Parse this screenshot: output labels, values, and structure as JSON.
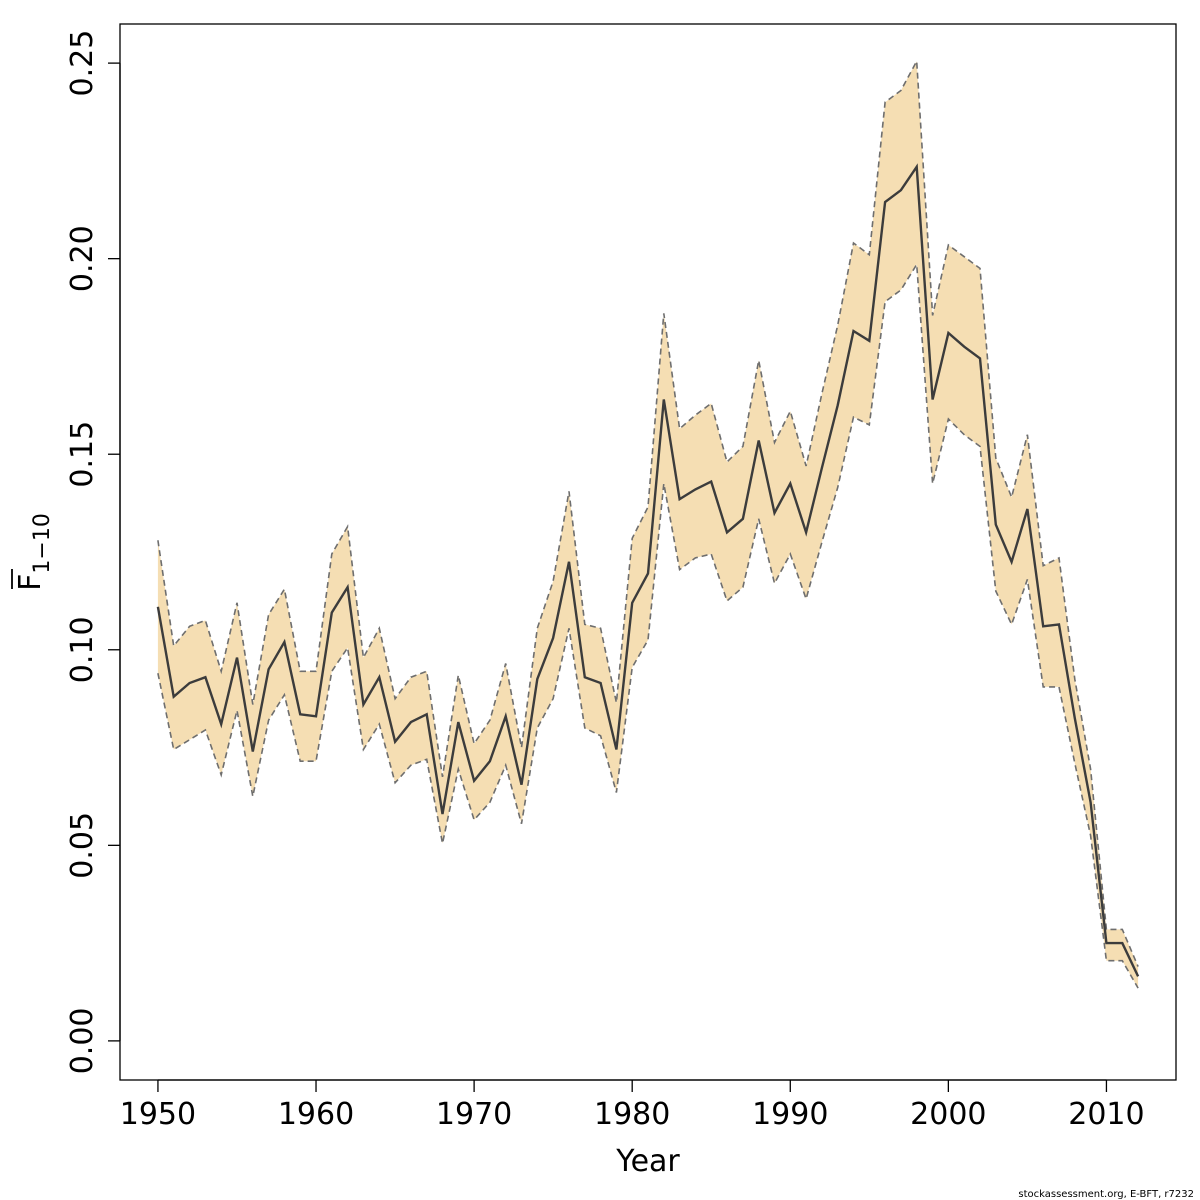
{
  "chart_data": {
    "type": "line",
    "title": "",
    "xlabel": "Year",
    "ylabel": {
      "base": "F",
      "subscript": "1−10"
    },
    "xlim": [
      1947.6,
      2014.4
    ],
    "ylim": [
      -0.01,
      0.26
    ],
    "xticks": [
      1950,
      1960,
      1970,
      1980,
      1990,
      2000,
      2010
    ],
    "yticks": [
      0.0,
      0.05,
      0.1,
      0.15,
      0.2,
      0.25
    ],
    "ytick_labels": [
      "0.00",
      "0.05",
      "0.10",
      "0.15",
      "0.20",
      "0.25"
    ],
    "grid": false,
    "colors": {
      "band_fill": "#F5DEB3",
      "bound_line": "#6e6e6e",
      "estimate_line": "#3c3c3c",
      "axis": "#000000"
    },
    "x": [
      1950,
      1951,
      1952,
      1953,
      1954,
      1955,
      1956,
      1957,
      1958,
      1959,
      1960,
      1961,
      1962,
      1963,
      1964,
      1965,
      1966,
      1967,
      1968,
      1969,
      1970,
      1971,
      1972,
      1973,
      1974,
      1975,
      1976,
      1977,
      1978,
      1979,
      1980,
      1981,
      1982,
      1983,
      1984,
      1985,
      1986,
      1987,
      1988,
      1989,
      1990,
      1991,
      1992,
      1993,
      1994,
      1995,
      1996,
      1997,
      1998,
      1999,
      2000,
      2001,
      2002,
      2003,
      2004,
      2005,
      2006,
      2007,
      2008,
      2009,
      2010,
      2011,
      2012
    ],
    "series": [
      {
        "role": "estimate",
        "values": [
          0.111,
          0.088,
          0.0915,
          0.093,
          0.081,
          0.098,
          0.074,
          0.095,
          0.102,
          0.0835,
          0.083,
          0.1095,
          0.116,
          0.086,
          0.093,
          0.0765,
          0.0815,
          0.0835,
          0.058,
          0.0815,
          0.0665,
          0.0715,
          0.083,
          0.0655,
          0.0925,
          0.103,
          0.1225,
          0.093,
          0.0915,
          0.0745,
          0.112,
          0.1195,
          0.164,
          0.1385,
          0.141,
          0.143,
          0.13,
          0.1335,
          0.1535,
          0.135,
          0.1425,
          0.13,
          0.1465,
          0.1625,
          0.1815,
          0.179,
          0.2145,
          0.2175,
          0.2235,
          0.164,
          0.181,
          0.1775,
          0.1745,
          0.132,
          0.1225,
          0.136,
          0.106,
          0.1065,
          0.0825,
          0.061,
          0.025,
          0.025,
          0.0165
        ]
      },
      {
        "role": "upper-bound",
        "values": [
          0.128,
          0.101,
          0.106,
          0.1075,
          0.0945,
          0.112,
          0.086,
          0.109,
          0.1155,
          0.0945,
          0.0945,
          0.1245,
          0.1315,
          0.098,
          0.1055,
          0.0875,
          0.093,
          0.0945,
          0.0675,
          0.0935,
          0.076,
          0.082,
          0.0965,
          0.075,
          0.1055,
          0.1175,
          0.1405,
          0.1065,
          0.1055,
          0.0865,
          0.1285,
          0.1365,
          0.186,
          0.1565,
          0.16,
          0.163,
          0.148,
          0.152,
          0.174,
          0.153,
          0.161,
          0.147,
          0.1655,
          0.183,
          0.204,
          0.201,
          0.24,
          0.243,
          0.2505,
          0.1855,
          0.2035,
          0.2005,
          0.1975,
          0.149,
          0.139,
          0.155,
          0.1215,
          0.1235,
          0.0925,
          0.0695,
          0.0285,
          0.0285,
          0.019
        ]
      },
      {
        "role": "lower-bound",
        "values": [
          0.094,
          0.0745,
          0.077,
          0.0795,
          0.068,
          0.0845,
          0.0625,
          0.082,
          0.0885,
          0.0715,
          0.0715,
          0.0945,
          0.1005,
          0.0745,
          0.081,
          0.066,
          0.0705,
          0.072,
          0.0505,
          0.0695,
          0.0565,
          0.061,
          0.0705,
          0.0555,
          0.08,
          0.0875,
          0.1055,
          0.08,
          0.078,
          0.0635,
          0.0955,
          0.1025,
          0.1425,
          0.1205,
          0.1235,
          0.1245,
          0.1125,
          0.116,
          0.1335,
          0.117,
          0.1245,
          0.113,
          0.1275,
          0.1415,
          0.1595,
          0.1575,
          0.189,
          0.192,
          0.1985,
          0.1425,
          0.159,
          0.155,
          0.152,
          0.115,
          0.1065,
          0.118,
          0.0905,
          0.0905,
          0.071,
          0.0525,
          0.0205,
          0.0205,
          0.0135
        ]
      }
    ],
    "footer": "stockassessment.org, E-BFT, r7232"
  }
}
